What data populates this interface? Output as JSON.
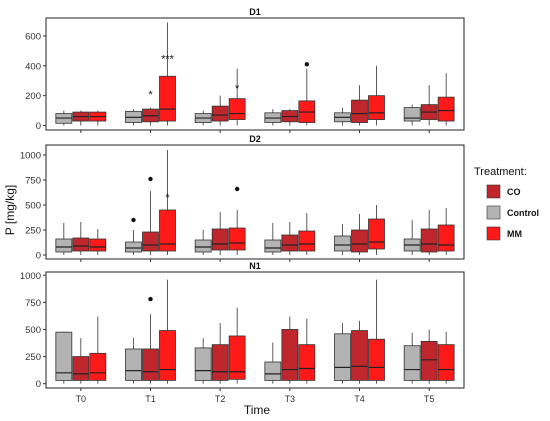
{
  "chart_data": {
    "type": "boxplot",
    "xlabel": "Time",
    "ylabel": "P [mg/kg]",
    "categories": [
      "T0",
      "T1",
      "T2",
      "T3",
      "T4",
      "T5"
    ],
    "legend": {
      "title": "Treatment:",
      "placement": "right",
      "entries": [
        {
          "name": "CO",
          "color": "#c0272d"
        },
        {
          "name": "Control",
          "color": "#b3b3b3"
        },
        {
          "name": "MM",
          "color": "#ff1a1a"
        }
      ]
    },
    "group_order": [
      "Control",
      "CO",
      "MM"
    ],
    "colors": {
      "Control": "#b3b3b3",
      "CO": "#c0272d",
      "MM": "#ff1a1a"
    },
    "panels": [
      {
        "title": "D1",
        "ylim": [
          -30,
          720
        ],
        "yticks": [
          0,
          200,
          400,
          600
        ],
        "boxes": {
          "Control": [
            [
              0,
              15,
              50,
              80,
              100
            ],
            [
              0,
              20,
              55,
              95,
              110
            ],
            [
              0,
              20,
              50,
              80,
              100
            ],
            [
              0,
              20,
              50,
              85,
              110
            ],
            [
              0,
              25,
              55,
              85,
              120
            ],
            [
              0,
              30,
              50,
              120,
              140
            ]
          ],
          "CO": [
            [
              0,
              30,
              60,
              90,
              100
            ],
            [
              0,
              25,
              65,
              110,
              120
            ],
            [
              0,
              30,
              70,
              130,
              200
            ],
            [
              0,
              25,
              60,
              100,
              110
            ],
            [
              0,
              20,
              80,
              170,
              270
            ],
            [
              0,
              40,
              90,
              140,
              270
            ]
          ],
          "MM": [
            [
              0,
              30,
              60,
              90,
              100
            ],
            [
              0,
              30,
              110,
              330,
              690
            ],
            [
              0,
              40,
              80,
              180,
              380
            ],
            [
              0,
              20,
              90,
              165,
              380
            ],
            [
              0,
              40,
              85,
              200,
              400
            ],
            [
              0,
              30,
              100,
              190,
              350
            ]
          ]
        },
        "outliers": [
          {
            "x": "T3",
            "group": "MM",
            "y": 410
          }
        ],
        "annotations": [
          {
            "x": "T1",
            "group": "CO",
            "text": "*",
            "y": 210
          },
          {
            "x": "T1",
            "group": "MM",
            "text": "***",
            "y": 450
          },
          {
            "x": "T2",
            "group": "MM",
            "text": "*",
            "y": 250
          }
        ]
      },
      {
        "title": "D2",
        "ylim": [
          -40,
          1100
        ],
        "yticks": [
          0,
          250,
          500,
          750,
          1000
        ],
        "boxes": {
          "Control": [
            [
              0,
              30,
              80,
              160,
              320
            ],
            [
              0,
              30,
              70,
              130,
              250
            ],
            [
              0,
              30,
              80,
              150,
              250
            ],
            [
              0,
              30,
              70,
              150,
              320
            ],
            [
              0,
              40,
              100,
              190,
              310
            ],
            [
              0,
              40,
              100,
              160,
              350
            ]
          ],
          "CO": [
            [
              0,
              40,
              90,
              170,
              330
            ],
            [
              0,
              40,
              100,
              230,
              640
            ],
            [
              0,
              50,
              110,
              260,
              430
            ],
            [
              0,
              40,
              100,
              200,
              330
            ],
            [
              0,
              30,
              110,
              250,
              410
            ],
            [
              0,
              30,
              110,
              260,
              450
            ]
          ],
          "MM": [
            [
              0,
              40,
              80,
              160,
              260
            ],
            [
              0,
              40,
              110,
              450,
              1050
            ],
            [
              0,
              50,
              120,
              270,
              450
            ],
            [
              0,
              40,
              110,
              240,
              420
            ],
            [
              0,
              60,
              130,
              360,
              500
            ],
            [
              0,
              40,
              100,
              300,
              470
            ]
          ]
        },
        "outliers": [
          {
            "x": "T1",
            "group": "Control",
            "y": 350
          },
          {
            "x": "T1",
            "group": "CO",
            "y": 760
          },
          {
            "x": "T2",
            "group": "MM",
            "y": 660
          }
        ],
        "annotations": [
          {
            "x": "T1",
            "group": "MM",
            "text": "*",
            "y": 580
          }
        ]
      },
      {
        "title": "N1",
        "ylim": [
          -40,
          1030
        ],
        "yticks": [
          0,
          250,
          500,
          750,
          1000
        ],
        "boxes": {
          "Control": [
            [
              0,
              30,
              100,
              475,
              480
            ],
            [
              0,
              30,
              120,
              320,
              420
            ],
            [
              0,
              30,
              120,
              330,
              420
            ],
            [
              0,
              30,
              90,
              200,
              380
            ],
            [
              0,
              30,
              150,
              460,
              560
            ],
            [
              0,
              30,
              130,
              350,
              470
            ]
          ],
          "CO": [
            [
              0,
              30,
              90,
              250,
              420
            ],
            [
              0,
              30,
              110,
              320,
              640
            ],
            [
              0,
              30,
              110,
              360,
              560
            ],
            [
              0,
              30,
              130,
              500,
              620
            ],
            [
              0,
              30,
              160,
              490,
              580
            ],
            [
              0,
              30,
              220,
              390,
              500
            ]
          ],
          "MM": [
            [
              0,
              30,
              100,
              280,
              620
            ],
            [
              0,
              30,
              130,
              490,
              960
            ],
            [
              0,
              40,
              110,
              440,
              700
            ],
            [
              0,
              30,
              140,
              360,
              600
            ],
            [
              0,
              30,
              150,
              410,
              960
            ],
            [
              0,
              30,
              130,
              360,
              480
            ]
          ]
        },
        "outliers": [
          {
            "x": "T1",
            "group": "CO",
            "y": 780
          }
        ],
        "annotations": []
      }
    ]
  }
}
